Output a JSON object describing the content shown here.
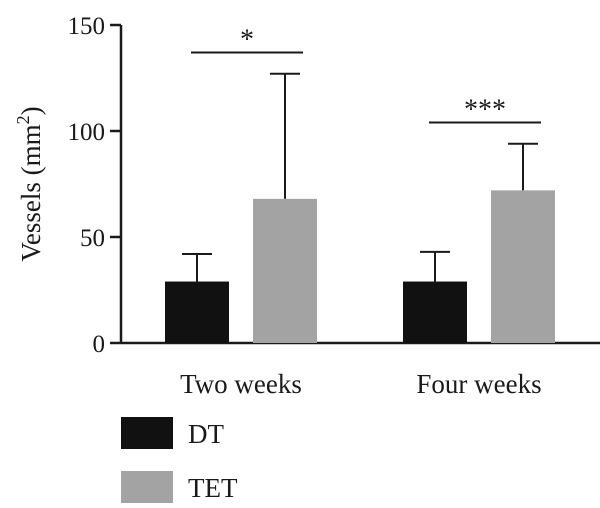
{
  "chart_data": {
    "type": "bar",
    "categories": [
      "Two weeks",
      "Four weeks"
    ],
    "series": [
      {
        "name": "DT",
        "color": "#111111",
        "values": [
          29,
          29
        ],
        "error_upper": [
          42,
          43
        ]
      },
      {
        "name": "TET",
        "color": "#a3a3a3",
        "values": [
          68,
          72
        ],
        "error_upper": [
          127,
          94
        ]
      }
    ],
    "ylabel_main": "Vessels (mm",
    "ylabel_sup": "2",
    "ylabel_close": ")",
    "ylim": [
      0,
      150
    ],
    "yticks": [
      "0",
      "50",
      "100",
      "150"
    ],
    "significance": [
      {
        "category_index": 0,
        "label": "*",
        "level": 137
      },
      {
        "category_index": 1,
        "label": "***",
        "level": 104
      }
    ],
    "legend_placement": "bottom-left",
    "grid": false
  }
}
